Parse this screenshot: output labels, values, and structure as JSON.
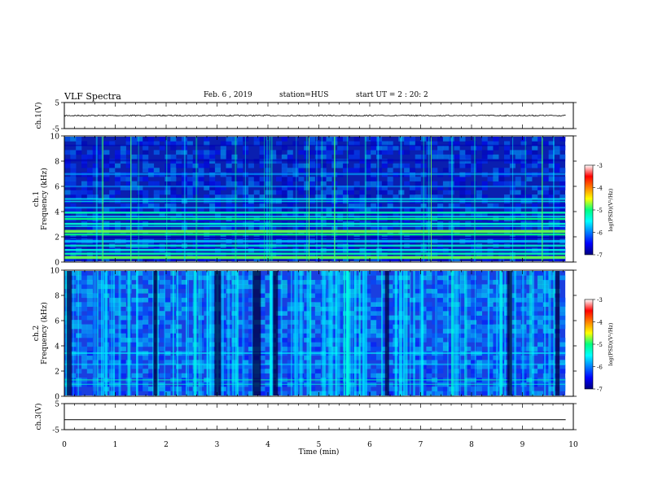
{
  "header": {
    "title": "VLF Spectra",
    "date": "Feb. 6  , 2019",
    "station": "station=HUS",
    "start": "start  UT  =   2  : 20: 2"
  },
  "chart_data": [
    {
      "type": "line",
      "panel": "ch1-waveform",
      "ylabel": "ch.1(V)",
      "ylim": [
        -5,
        5
      ],
      "yticks": [
        "5",
        "-5"
      ],
      "xlim": [
        0,
        10
      ],
      "baseline_value": 0,
      "color": "#000000"
    },
    {
      "type": "heatmap",
      "panel": "ch1-spectrogram",
      "ylabel": "ch.1\nFrequency  (kHz)",
      "ylim": [
        0,
        10
      ],
      "yticks": [
        "10",
        "8",
        "6",
        "4",
        "2",
        "0"
      ],
      "xlim": [
        0,
        10
      ],
      "data_extent_min": 9.85,
      "colorbar": {
        "label": "log(PSD)(V²/Hz)",
        "range": [
          -7,
          -3
        ],
        "ticks": [
          "-3",
          "-4",
          "-5",
          "-6",
          "-7"
        ]
      }
    },
    {
      "type": "heatmap",
      "panel": "ch2-spectrogram",
      "ylabel": "ch.2\nFrequency  (kHz)",
      "ylim": [
        0,
        10
      ],
      "yticks": [
        "10",
        "8",
        "6",
        "4",
        "2",
        "0"
      ],
      "xlim": [
        0,
        10
      ],
      "data_extent_min": 9.85,
      "colorbar": {
        "label": "log(PSD)(V²/Hz)",
        "range": [
          -7,
          -3
        ],
        "ticks": [
          "-3",
          "-4",
          "-5",
          "-6",
          "-7"
        ]
      }
    },
    {
      "type": "line",
      "panel": "ch3-waveform",
      "ylabel": "ch.3(V)",
      "ylim": [
        -5,
        5
      ],
      "yticks": [
        "5",
        "-5"
      ],
      "xlim": [
        0,
        10
      ],
      "baseline_value": -1.2,
      "color": "#000000"
    }
  ],
  "xaxis": {
    "label": "Time  (min)",
    "ticks": [
      "0",
      "1",
      "2",
      "3",
      "4",
      "5",
      "6",
      "7",
      "8",
      "9",
      "10"
    ]
  }
}
